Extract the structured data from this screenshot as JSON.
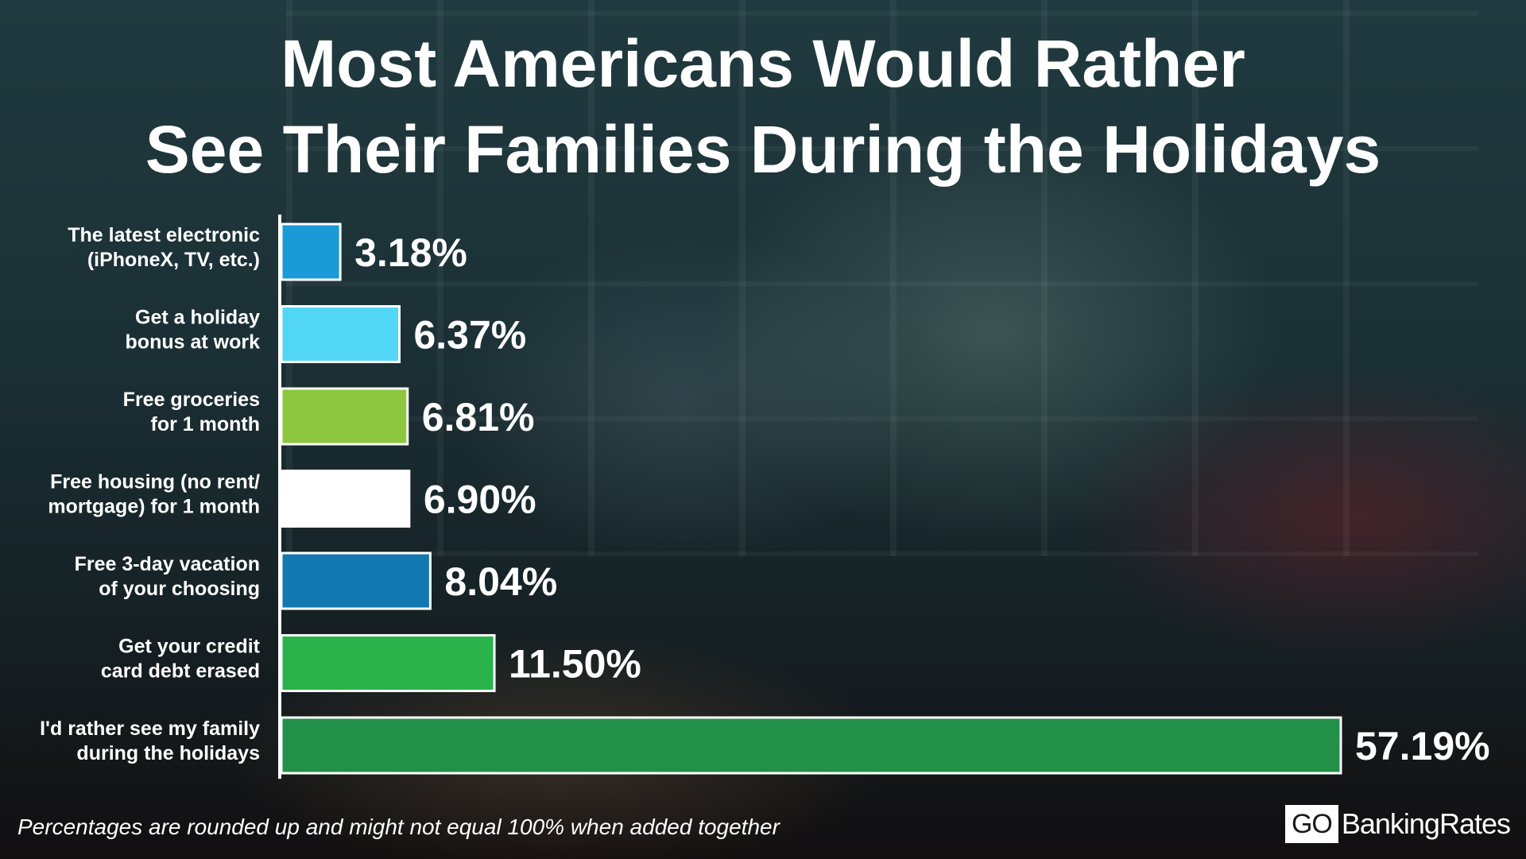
{
  "title_line1": "Most Americans Would Rather",
  "title_line2": "See Their Families During the Holidays",
  "footnote": "Percentages are rounded up and might not equal 100% when added together",
  "logo": {
    "prefix": "GO",
    "name": "BankingRates"
  },
  "chart_data": {
    "type": "bar",
    "orientation": "horizontal",
    "categories": [
      [
        "The latest electronic",
        "(iPhoneX, TV, etc.)"
      ],
      [
        "Get a holiday",
        "bonus at work"
      ],
      [
        "Free groceries",
        "for 1 month"
      ],
      [
        "Free housing (no rent/",
        "mortgage) for 1 month"
      ],
      [
        "Free 3-day vacation",
        "of your choosing"
      ],
      [
        "Get your credit",
        "card debt erased"
      ],
      [
        "I'd rather see my family",
        "during the holidays"
      ]
    ],
    "values": [
      3.18,
      6.37,
      6.81,
      6.9,
      8.04,
      11.5,
      57.19
    ],
    "value_labels": [
      "3.18%",
      "6.37%",
      "6.81%",
      "6.90%",
      "8.04%",
      "11.50%",
      "57.19%"
    ],
    "colors": [
      "#1a9ad6",
      "#52d6f5",
      "#8dc63f",
      "#ffffff",
      "#1478b0",
      "#2ab34b",
      "#229048"
    ],
    "grid": false
  }
}
